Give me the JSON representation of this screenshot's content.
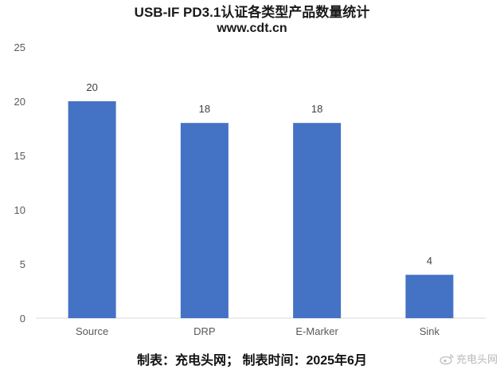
{
  "chart_data": {
    "type": "bar",
    "title": "USB-IF PD3.1认证各类型产品数量统计",
    "subtitle": "www.cdt.cn",
    "categories": [
      "Source",
      "DRP",
      "E-Marker",
      "Sink"
    ],
    "values": [
      20,
      18,
      18,
      4
    ],
    "ylim": [
      0,
      25
    ],
    "yticks": [
      0,
      5,
      10,
      15,
      20,
      25
    ],
    "grid": false,
    "legend": "none",
    "bar_color": "#4472c4",
    "data_labels": true
  },
  "footer": "制表：充电头网； 制表时间：2025年6月",
  "watermark": {
    "icon": "weibo-icon",
    "text": "充电头网"
  }
}
